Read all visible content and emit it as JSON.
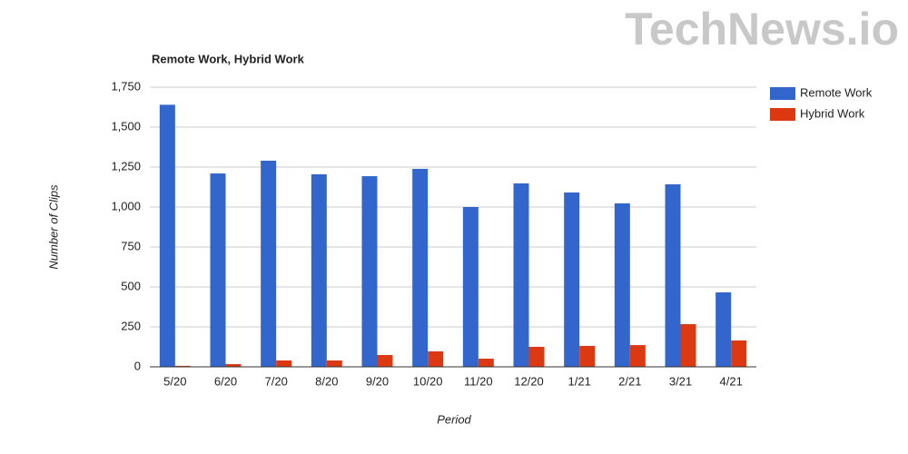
{
  "watermark": "TechNews.io",
  "chart_data": {
    "type": "bar",
    "title": "Remote Work, Hybrid Work",
    "x_label": "Period",
    "y_label": "Number of Clips",
    "categories": [
      "5/20",
      "6/20",
      "7/20",
      "8/20",
      "9/20",
      "10/20",
      "11/20",
      "12/20",
      "1/21",
      "2/21",
      "3/21",
      "4/21"
    ],
    "series": [
      {
        "name": "Remote Work",
        "color": "#3366cc",
        "values": [
          1640,
          1210,
          1290,
          1205,
          1193,
          1239,
          1000,
          1148,
          1091,
          1023,
          1142,
          466
        ]
      },
      {
        "name": "Hybrid Work",
        "color": "#dc3912",
        "values": [
          6,
          17,
          40,
          40,
          74,
          97,
          51,
          125,
          131,
          136,
          267,
          165
        ]
      }
    ],
    "ylim": [
      0,
      1750
    ],
    "yticks": [
      0,
      250,
      500,
      750,
      {
        "value": 1000,
        "label": "1,000"
      },
      {
        "value": 1250,
        "label": "1,250"
      },
      {
        "value": 1500,
        "label": "1,500"
      },
      {
        "value": 1750,
        "label": "1,750"
      }
    ],
    "grid": true,
    "legend": "right"
  }
}
